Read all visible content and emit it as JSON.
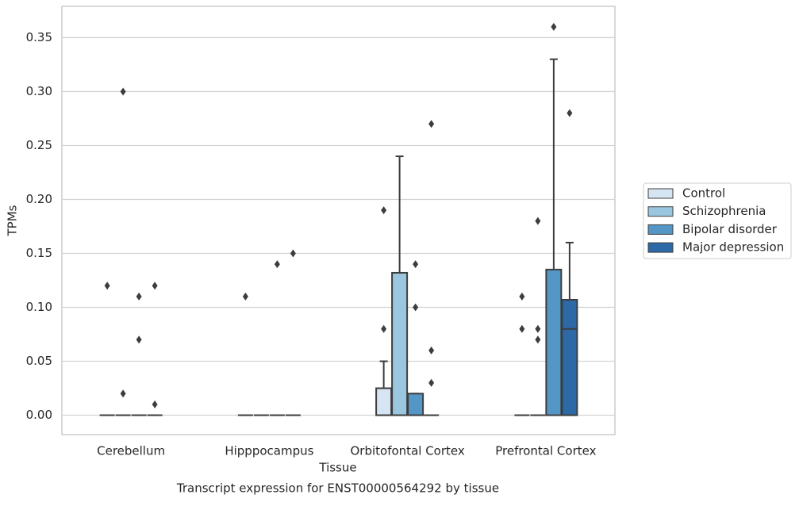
{
  "chart_data": {
    "type": "box",
    "title": "Transcript expression for ENST00000564292 by tissue",
    "x_label": "Tissue",
    "y_label": "TPMs",
    "categories": [
      "Cerebellum",
      "Hipppocampus",
      "Orbitofontal Cortex",
      "Prefrontal Cortex"
    ],
    "ylim": [
      -0.018,
      0.379
    ],
    "yticks": [
      {
        "value": 0,
        "label": "0.00"
      },
      {
        "value": 0.05,
        "label": "0.05"
      },
      {
        "value": 0.1,
        "label": "0.10"
      },
      {
        "value": 0.15,
        "label": "0.15"
      },
      {
        "value": 0.2,
        "label": "0.20"
      },
      {
        "value": 0.25,
        "label": "0.25"
      },
      {
        "value": 0.3,
        "label": "0.30"
      },
      {
        "value": 0.35,
        "label": "0.35"
      }
    ],
    "grid": true,
    "legend_position": "right",
    "series": [
      {
        "name": "Control",
        "color": "#d6e5f3",
        "boxes": [
          {
            "whislo": 0,
            "q1": 0,
            "med": 0,
            "q3": 0,
            "whishi": 0,
            "fliers": [
              0.12
            ]
          },
          {
            "whislo": 0,
            "q1": 0,
            "med": 0,
            "q3": 0,
            "whishi": 0,
            "fliers": [
              0.11
            ]
          },
          {
            "whislo": 0,
            "q1": 0,
            "med": 0,
            "q3": 0.025,
            "whishi": 0.05,
            "fliers": [
              0.19,
              0.08
            ]
          },
          {
            "whislo": 0,
            "q1": 0,
            "med": 0,
            "q3": 0,
            "whishi": 0,
            "fliers": [
              0.11,
              0.08
            ]
          }
        ]
      },
      {
        "name": "Schizophrenia",
        "color": "#9ac7df",
        "boxes": [
          {
            "whislo": 0,
            "q1": 0,
            "med": 0,
            "q3": 0,
            "whishi": 0,
            "fliers": [
              0.3,
              0.02
            ]
          },
          {
            "whislo": 0,
            "q1": 0,
            "med": 0,
            "q3": 0,
            "whishi": 0,
            "fliers": []
          },
          {
            "whislo": 0,
            "q1": 0,
            "med": 0,
            "q3": 0.132,
            "whishi": 0.24,
            "fliers": []
          },
          {
            "whislo": 0,
            "q1": 0,
            "med": 0,
            "q3": 0,
            "whishi": 0,
            "fliers": [
              0.18,
              0.08,
              0.07
            ]
          }
        ]
      },
      {
        "name": "Bipolar disorder",
        "color": "#5497c6",
        "boxes": [
          {
            "whislo": 0,
            "q1": 0,
            "med": 0,
            "q3": 0,
            "whishi": 0,
            "fliers": [
              0.11,
              0.07
            ]
          },
          {
            "whislo": 0,
            "q1": 0,
            "med": 0,
            "q3": 0,
            "whishi": 0,
            "fliers": [
              0.14
            ]
          },
          {
            "whislo": 0,
            "q1": 0,
            "med": 0,
            "q3": 0.02,
            "whishi": 0.02,
            "fliers": [
              0.14,
              0.1
            ]
          },
          {
            "whislo": 0,
            "q1": 0,
            "med": 0,
            "q3": 0.135,
            "whishi": 0.33,
            "fliers": [
              0.36
            ]
          }
        ]
      },
      {
        "name": "Major depression",
        "color": "#2c69a6",
        "boxes": [
          {
            "whislo": 0,
            "q1": 0,
            "med": 0,
            "q3": 0,
            "whishi": 0,
            "fliers": [
              0.12,
              0.01
            ]
          },
          {
            "whislo": 0,
            "q1": 0,
            "med": 0,
            "q3": 0,
            "whishi": 0,
            "fliers": [
              0.15
            ]
          },
          {
            "whislo": 0,
            "q1": 0,
            "med": 0,
            "q3": 0,
            "whishi": 0,
            "fliers": [
              0.27,
              0.06,
              0.03
            ]
          },
          {
            "whislo": 0,
            "q1": 0,
            "med": 0.08,
            "q3": 0.107,
            "whishi": 0.16,
            "fliers": [
              0.28
            ]
          }
        ]
      }
    ]
  }
}
